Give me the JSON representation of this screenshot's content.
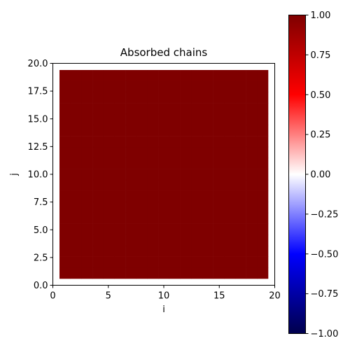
{
  "chart_data": {
    "type": "heatmap",
    "title": "Absorbed chains",
    "xlabel": "i",
    "ylabel": "j",
    "xlim": [
      0,
      20
    ],
    "ylim": [
      0,
      20
    ],
    "x_ticks": [
      0,
      5,
      10,
      15,
      20
    ],
    "y_ticks": [
      0.0,
      2.5,
      5.0,
      7.5,
      10.0,
      12.5,
      15.0,
      17.5,
      20.0
    ],
    "x_tick_labels": [
      "0",
      "5",
      "10",
      "15",
      "20"
    ],
    "y_tick_labels": [
      "0.0",
      "2.5",
      "5.0",
      "7.5",
      "10.0",
      "12.5",
      "15.0",
      "17.5",
      "20.0"
    ],
    "cell_extent": {
      "x": [
        0.6,
        19.4
      ],
      "y": [
        0.6,
        19.4
      ]
    },
    "grid_size": [
      19,
      19
    ],
    "value": 1.0,
    "colormap": "seismic",
    "colorbar": {
      "vmin": -1.0,
      "vmax": 1.0,
      "ticks": [
        -1.0,
        -0.75,
        -0.5,
        -0.25,
        0.0,
        0.25,
        0.5,
        0.75,
        1.0
      ],
      "tick_labels": [
        "−1.00",
        "−0.75",
        "−0.50",
        "−0.25",
        "0.00",
        "0.25",
        "0.50",
        "0.75",
        "1.00"
      ]
    },
    "grid": false
  },
  "colors": {
    "dark_red": "#7f0000",
    "red": "#ff0000",
    "white": "#ffffff",
    "blue": "#0000ff",
    "dark_blue": "#00004c"
  }
}
